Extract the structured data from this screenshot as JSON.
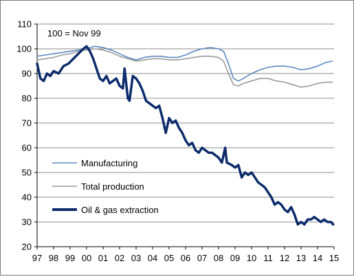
{
  "chart_data": {
    "type": "line",
    "title": "",
    "xlabel": "",
    "ylabel": "",
    "annotation": "100 = Nov 99",
    "ylim": [
      20,
      110
    ],
    "yticks": [
      "20",
      "30",
      "40",
      "50",
      "60",
      "70",
      "80",
      "90",
      "100",
      "110"
    ],
    "xlim": [
      1997,
      2015
    ],
    "xticks": [
      "97",
      "98",
      "99",
      "00",
      "01",
      "02",
      "03",
      "04",
      "05",
      "06",
      "07",
      "08",
      "09",
      "10",
      "11",
      "12",
      "13",
      "14",
      "15"
    ],
    "grid": "horizontal",
    "legend_position": "lower-left",
    "series": [
      {
        "name": "Manufacturing",
        "color": "#5b87bf",
        "style": "thin",
        "points": [
          [
            1997.0,
            97
          ],
          [
            1997.5,
            97.5
          ],
          [
            1998.0,
            98
          ],
          [
            1998.5,
            98.5
          ],
          [
            1999.0,
            99
          ],
          [
            1999.5,
            99.5
          ],
          [
            2000.0,
            100
          ],
          [
            2000.5,
            101
          ],
          [
            2001.0,
            100.5
          ],
          [
            2001.5,
            99.5
          ],
          [
            2002.0,
            98
          ],
          [
            2002.5,
            96.5
          ],
          [
            2003.0,
            95.5
          ],
          [
            2003.5,
            96.5
          ],
          [
            2004.0,
            97
          ],
          [
            2004.5,
            97
          ],
          [
            2005.0,
            96.5
          ],
          [
            2005.5,
            96.5
          ],
          [
            2006.0,
            97.5
          ],
          [
            2006.5,
            99
          ],
          [
            2007.0,
            100
          ],
          [
            2007.5,
            100.5
          ],
          [
            2008.0,
            100
          ],
          [
            2008.3,
            99
          ],
          [
            2008.6,
            94
          ],
          [
            2008.9,
            88
          ],
          [
            2009.2,
            87
          ],
          [
            2009.5,
            88
          ],
          [
            2010.0,
            90
          ],
          [
            2010.5,
            91.5
          ],
          [
            2011.0,
            92.5
          ],
          [
            2011.5,
            93
          ],
          [
            2012.0,
            93
          ],
          [
            2012.5,
            92.5
          ],
          [
            2013.0,
            91.5
          ],
          [
            2013.5,
            92
          ],
          [
            2014.0,
            93
          ],
          [
            2014.5,
            94.5
          ],
          [
            2014.9,
            95
          ]
        ]
      },
      {
        "name": "Total production",
        "color": "#9a9a9a",
        "style": "thin",
        "points": [
          [
            1997.0,
            95.5
          ],
          [
            1997.5,
            96
          ],
          [
            1998.0,
            96.5
          ],
          [
            1998.5,
            97.5
          ],
          [
            1999.0,
            98
          ],
          [
            1999.5,
            99
          ],
          [
            2000.0,
            99.5
          ],
          [
            2000.5,
            100
          ],
          [
            2001.0,
            99.5
          ],
          [
            2001.5,
            98.5
          ],
          [
            2002.0,
            97
          ],
          [
            2002.5,
            96
          ],
          [
            2003.0,
            95
          ],
          [
            2003.5,
            95.5
          ],
          [
            2004.0,
            96
          ],
          [
            2004.5,
            96
          ],
          [
            2005.0,
            95.5
          ],
          [
            2005.5,
            95.5
          ],
          [
            2006.0,
            96
          ],
          [
            2006.5,
            96.5
          ],
          [
            2007.0,
            97
          ],
          [
            2007.5,
            97
          ],
          [
            2008.0,
            96.5
          ],
          [
            2008.3,
            95
          ],
          [
            2008.6,
            90
          ],
          [
            2008.9,
            85.5
          ],
          [
            2009.2,
            85
          ],
          [
            2009.5,
            86
          ],
          [
            2010.0,
            87
          ],
          [
            2010.5,
            88
          ],
          [
            2011.0,
            88
          ],
          [
            2011.5,
            87
          ],
          [
            2012.0,
            86.5
          ],
          [
            2012.5,
            85.5
          ],
          [
            2013.0,
            84.5
          ],
          [
            2013.5,
            85
          ],
          [
            2014.0,
            86
          ],
          [
            2014.5,
            86.5
          ],
          [
            2014.9,
            86.5
          ]
        ]
      },
      {
        "name": "Oil & gas extraction",
        "color": "#0d2c6b",
        "style": "thick",
        "points": [
          [
            1997.0,
            94
          ],
          [
            1997.2,
            88
          ],
          [
            1997.4,
            87
          ],
          [
            1997.6,
            90
          ],
          [
            1997.8,
            89
          ],
          [
            1998.0,
            91
          ],
          [
            1998.3,
            90
          ],
          [
            1998.6,
            93
          ],
          [
            1998.9,
            94
          ],
          [
            1999.2,
            96
          ],
          [
            1999.5,
            98
          ],
          [
            1999.8,
            100
          ],
          [
            2000.0,
            101
          ],
          [
            2000.2,
            99
          ],
          [
            2000.4,
            96
          ],
          [
            2000.6,
            92
          ],
          [
            2000.8,
            88
          ],
          [
            2001.0,
            87
          ],
          [
            2001.2,
            89
          ],
          [
            2001.4,
            86
          ],
          [
            2001.6,
            87
          ],
          [
            2001.8,
            88
          ],
          [
            2002.0,
            85
          ],
          [
            2002.2,
            84
          ],
          [
            2002.3,
            92
          ],
          [
            2002.5,
            80
          ],
          [
            2002.6,
            79
          ],
          [
            2002.8,
            89
          ],
          [
            2003.0,
            88
          ],
          [
            2003.2,
            86
          ],
          [
            2003.4,
            83
          ],
          [
            2003.6,
            79
          ],
          [
            2003.8,
            78
          ],
          [
            2004.0,
            77
          ],
          [
            2004.2,
            76
          ],
          [
            2004.4,
            77
          ],
          [
            2004.6,
            72
          ],
          [
            2004.8,
            66
          ],
          [
            2005.0,
            72
          ],
          [
            2005.2,
            70
          ],
          [
            2005.4,
            71
          ],
          [
            2005.6,
            68
          ],
          [
            2005.8,
            66
          ],
          [
            2006.0,
            63
          ],
          [
            2006.2,
            61
          ],
          [
            2006.4,
            62
          ],
          [
            2006.6,
            59
          ],
          [
            2006.8,
            58
          ],
          [
            2007.0,
            60
          ],
          [
            2007.2,
            59
          ],
          [
            2007.4,
            58
          ],
          [
            2007.6,
            58
          ],
          [
            2007.8,
            57
          ],
          [
            2008.0,
            56
          ],
          [
            2008.2,
            54
          ],
          [
            2008.4,
            60
          ],
          [
            2008.5,
            54
          ],
          [
            2008.8,
            53
          ],
          [
            2009.0,
            52
          ],
          [
            2009.2,
            53
          ],
          [
            2009.4,
            48
          ],
          [
            2009.6,
            50
          ],
          [
            2009.8,
            49
          ],
          [
            2010.0,
            50
          ],
          [
            2010.2,
            48
          ],
          [
            2010.4,
            46
          ],
          [
            2010.6,
            45
          ],
          [
            2010.8,
            44
          ],
          [
            2011.0,
            42
          ],
          [
            2011.2,
            40
          ],
          [
            2011.4,
            37
          ],
          [
            2011.6,
            38
          ],
          [
            2011.8,
            37
          ],
          [
            2012.0,
            35
          ],
          [
            2012.2,
            34
          ],
          [
            2012.4,
            36
          ],
          [
            2012.6,
            33
          ],
          [
            2012.8,
            29
          ],
          [
            2013.0,
            30
          ],
          [
            2013.2,
            29
          ],
          [
            2013.4,
            31
          ],
          [
            2013.6,
            31
          ],
          [
            2013.8,
            32
          ],
          [
            2014.0,
            31
          ],
          [
            2014.2,
            30
          ],
          [
            2014.4,
            31
          ],
          [
            2014.6,
            30
          ],
          [
            2014.8,
            30
          ],
          [
            2014.95,
            29
          ]
        ]
      }
    ]
  }
}
